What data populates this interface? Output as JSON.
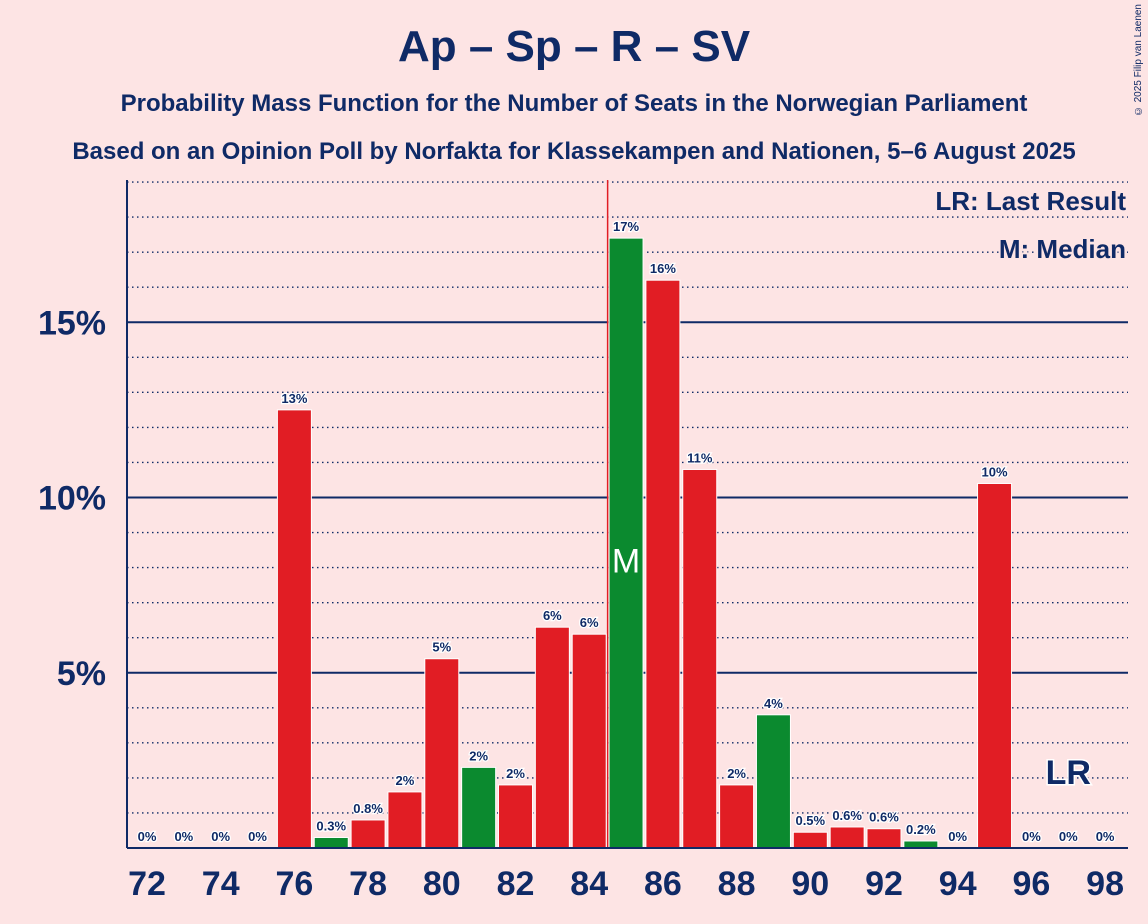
{
  "title": "Ap – Sp – R – SV",
  "subtitle_1": "Probability Mass Function for the Number of Seats in the Norwegian Parliament",
  "subtitle_2": "Based on an Opinion Poll by Norfakta for Klassekampen and Nationen, 5–6 August 2025",
  "copyright": "© 2025 Filip van Laenen",
  "colors": {
    "red": "#e11d24",
    "green": "#0b8a2f",
    "navy": "#0f2a66",
    "background": "#fde4e4",
    "median_line": "#e11d24"
  },
  "chart_data": {
    "type": "bar",
    "xlabel": "",
    "ylabel": "",
    "ylim": [
      0,
      19
    ],
    "y_ticks": [
      {
        "value": 5,
        "label": "5%"
      },
      {
        "value": 10,
        "label": "10%"
      },
      {
        "value": 15,
        "label": "15%"
      }
    ],
    "y_minor_step": 1,
    "x_tick_labels": [
      "72",
      "74",
      "76",
      "78",
      "80",
      "82",
      "84",
      "86",
      "88",
      "90",
      "92",
      "94",
      "96",
      "98"
    ],
    "categories": [
      72,
      73,
      74,
      75,
      76,
      77,
      78,
      79,
      80,
      81,
      82,
      83,
      84,
      85,
      86,
      87,
      88,
      89,
      90,
      91,
      92,
      93,
      94,
      95,
      96,
      97,
      98
    ],
    "values": [
      0,
      0,
      0,
      0,
      12.5,
      0.3,
      0.8,
      1.6,
      5.4,
      2.3,
      1.8,
      6.3,
      6.1,
      17.4,
      16.2,
      10.8,
      1.8,
      3.8,
      0.45,
      0.6,
      0.55,
      0.2,
      0,
      10.4,
      0,
      0,
      0
    ],
    "labels": [
      "0%",
      "0%",
      "0%",
      "0%",
      "13%",
      "0.3%",
      "0.8%",
      "2%",
      "5%",
      "2%",
      "2%",
      "6%",
      "6%",
      "17%",
      "16%",
      "11%",
      "2%",
      "4%",
      "0.5%",
      "0.6%",
      "0.6%",
      "0.2%",
      "0%",
      "10%",
      "0%",
      "0%",
      "0%"
    ],
    "bar_colors": [
      "red",
      "red",
      "red",
      "red",
      "red",
      "green",
      "red",
      "red",
      "red",
      "green",
      "red",
      "red",
      "red",
      "green",
      "red",
      "red",
      "red",
      "green",
      "red",
      "red",
      "red",
      "green",
      "red",
      "red",
      "red",
      "red",
      "red"
    ],
    "median": {
      "seat": 85,
      "label": "M"
    },
    "last_result": {
      "seat": 97,
      "label": "LR"
    },
    "legend": [
      "LR: Last Result",
      "M: Median"
    ],
    "legend_position": "top-right",
    "grid": true
  }
}
